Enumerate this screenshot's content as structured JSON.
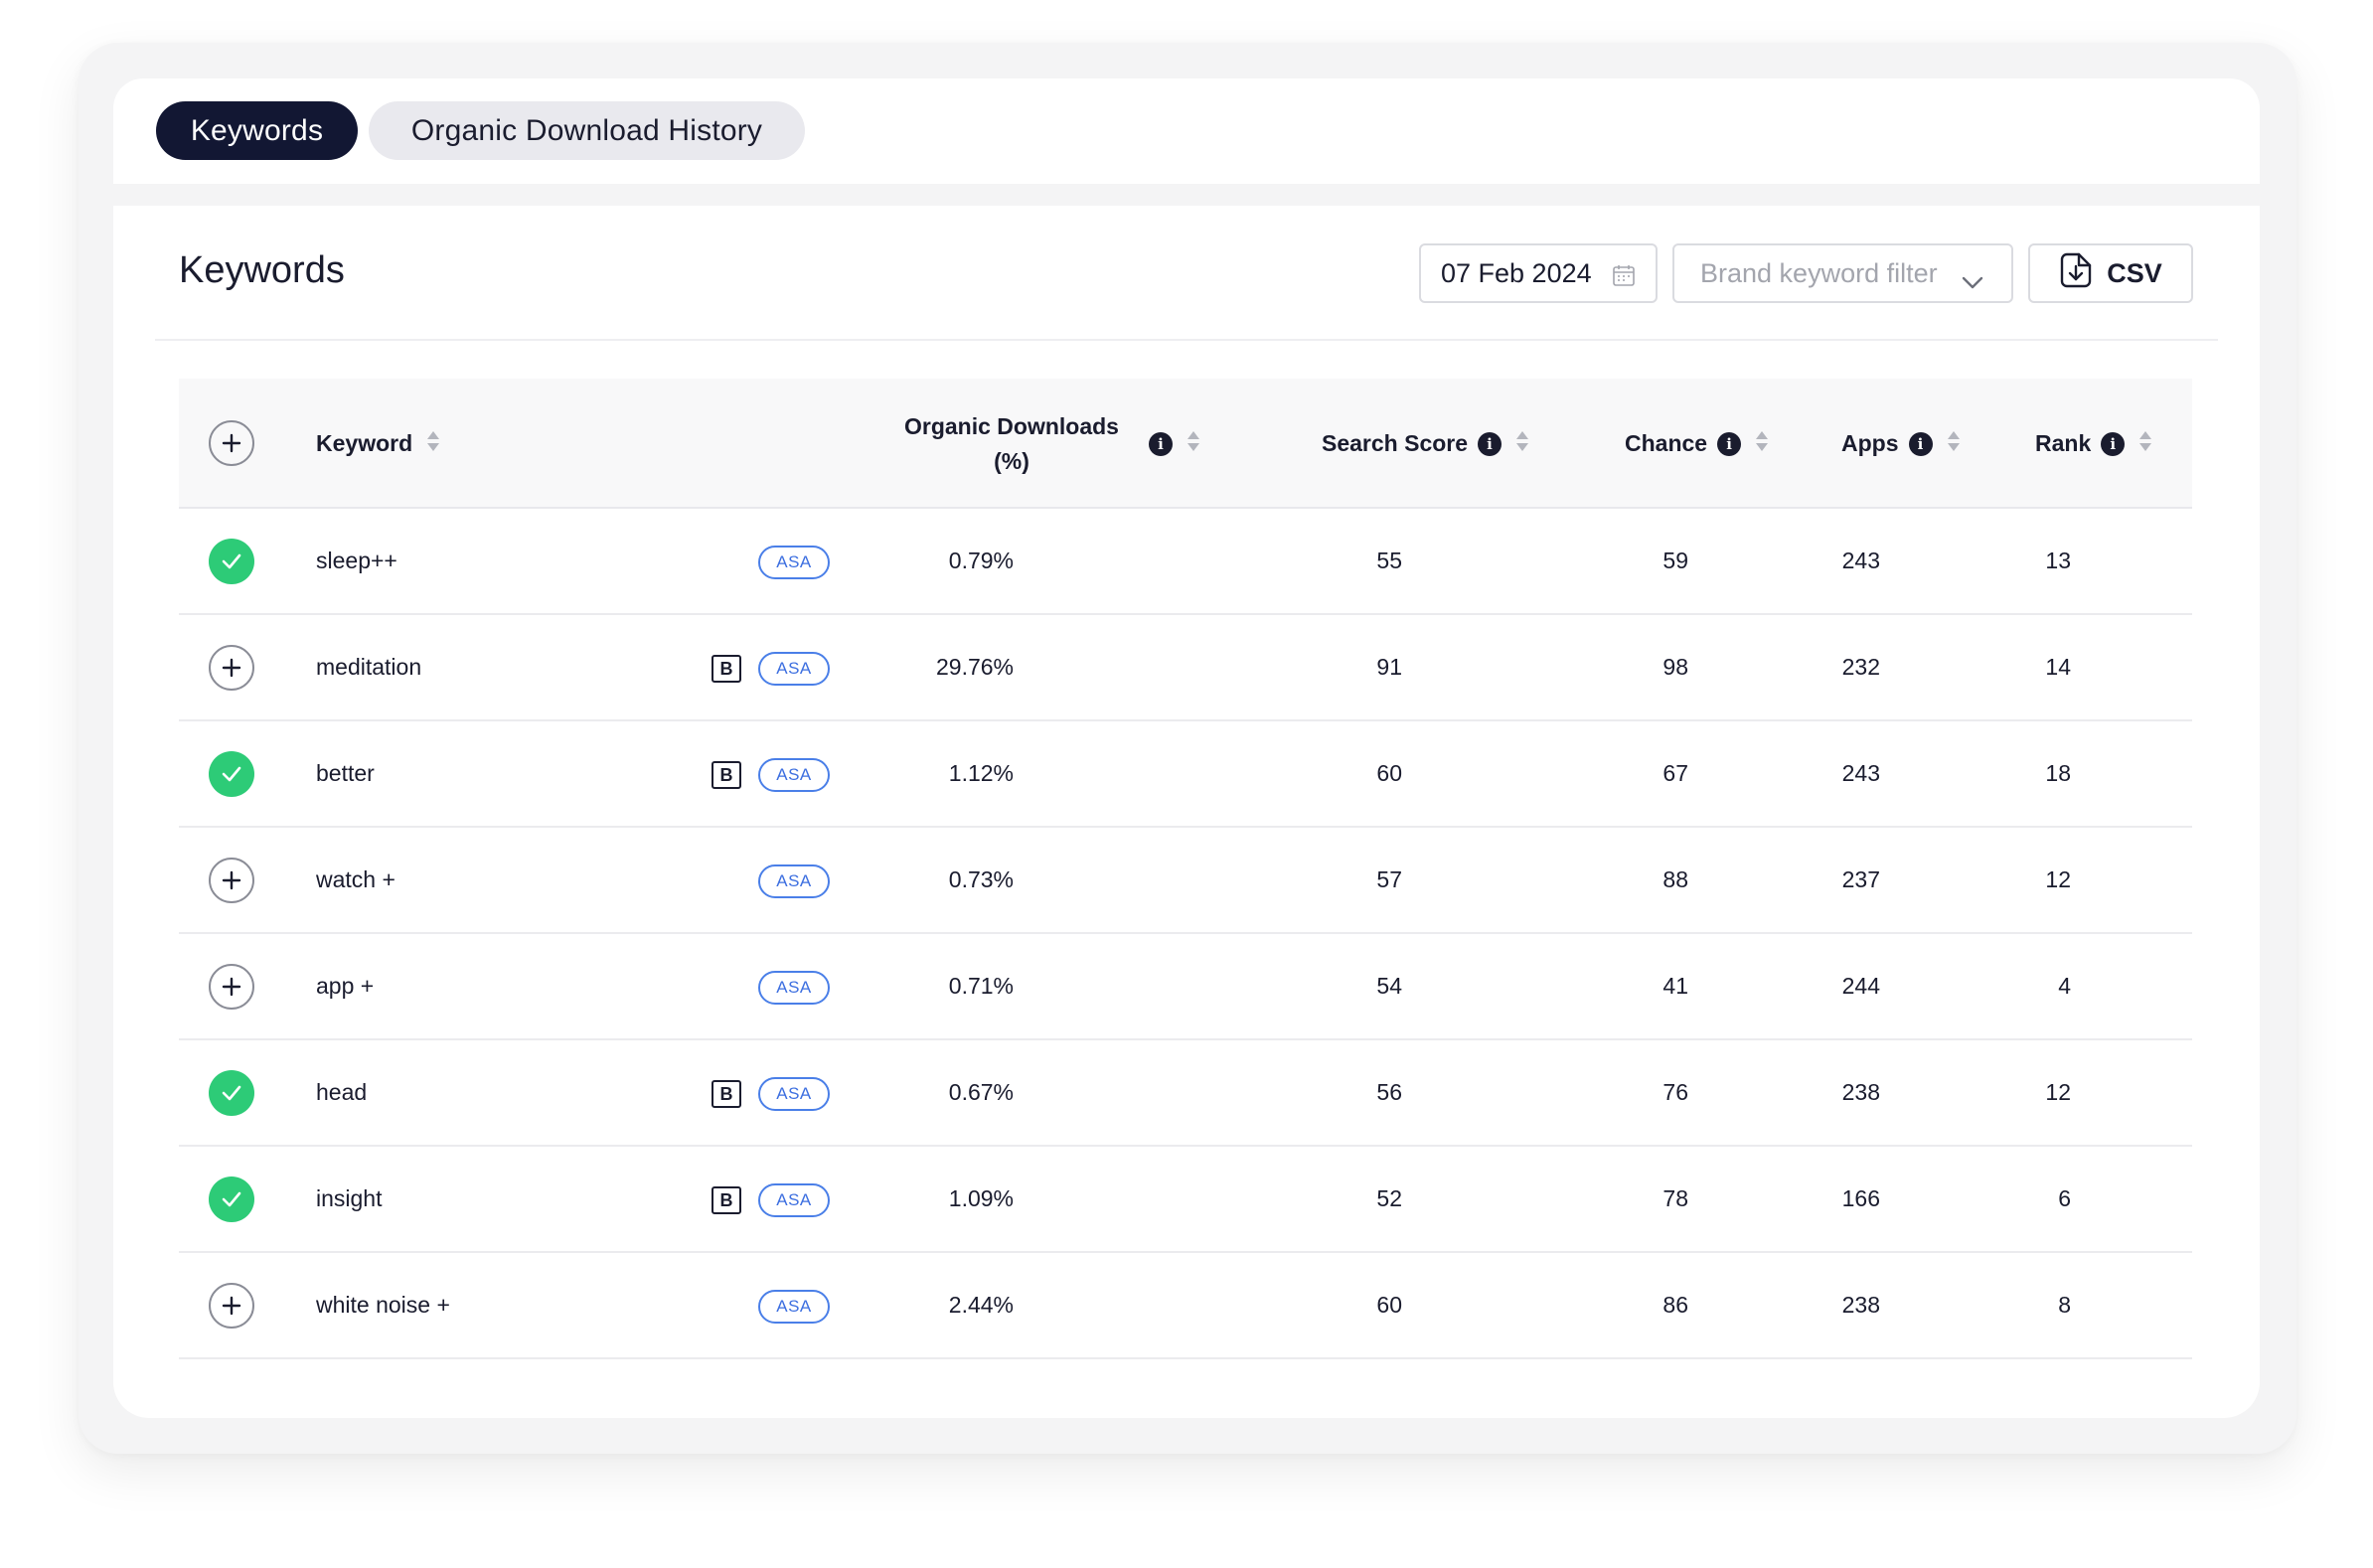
{
  "tabs": [
    {
      "label": "Keywords",
      "active": true
    },
    {
      "label": "Organic Download History",
      "active": false
    }
  ],
  "page": {
    "title": "Keywords",
    "date_value": "07 Feb 2024",
    "filter_placeholder": "Brand keyword filter",
    "csv_label": "CSV"
  },
  "table": {
    "columns": {
      "keyword": "Keyword",
      "organic_line1": "Organic Downloads",
      "organic_line2": "(%)",
      "search_score": "Search Score",
      "chance": "Chance",
      "apps": "Apps",
      "rank": "Rank"
    },
    "rows": [
      {
        "keyword": "sleep++",
        "tracked": true,
        "brand": false,
        "asa": "ASA",
        "organic": "0.79%",
        "search_score": "55",
        "chance": "59",
        "apps": "243",
        "rank": "13"
      },
      {
        "keyword": "meditation",
        "tracked": false,
        "brand": true,
        "asa": "ASA",
        "organic": "29.76%",
        "search_score": "91",
        "chance": "98",
        "apps": "232",
        "rank": "14"
      },
      {
        "keyword": "better",
        "tracked": true,
        "brand": true,
        "asa": "ASA",
        "organic": "1.12%",
        "search_score": "60",
        "chance": "67",
        "apps": "243",
        "rank": "18"
      },
      {
        "keyword": "watch +",
        "tracked": false,
        "brand": false,
        "asa": "ASA",
        "organic": "0.73%",
        "search_score": "57",
        "chance": "88",
        "apps": "237",
        "rank": "12"
      },
      {
        "keyword": "app +",
        "tracked": false,
        "brand": false,
        "asa": "ASA",
        "organic": "0.71%",
        "search_score": "54",
        "chance": "41",
        "apps": "244",
        "rank": "4"
      },
      {
        "keyword": "head",
        "tracked": true,
        "brand": true,
        "asa": "ASA",
        "organic": "0.67%",
        "search_score": "56",
        "chance": "76",
        "apps": "238",
        "rank": "12"
      },
      {
        "keyword": "insight",
        "tracked": true,
        "brand": true,
        "asa": "ASA",
        "organic": "1.09%",
        "search_score": "52",
        "chance": "78",
        "apps": "166",
        "rank": "6"
      },
      {
        "keyword": "white noise +",
        "tracked": false,
        "brand": false,
        "asa": "ASA",
        "organic": "2.44%",
        "search_score": "60",
        "chance": "86",
        "apps": "238",
        "rank": "8"
      }
    ],
    "brand_badge": "B"
  },
  "colors": {
    "tab_active": "#121733",
    "check_green": "#2dcb77",
    "asa_blue": "#3d6fe0"
  },
  "icons": {
    "tracked": "check-circle-icon",
    "untracked": "plus-circle-icon",
    "date": "calendar-icon",
    "filter": "chevron-down-icon",
    "csv": "file-download-icon",
    "info": "info-icon",
    "sort": "sort-icon"
  }
}
